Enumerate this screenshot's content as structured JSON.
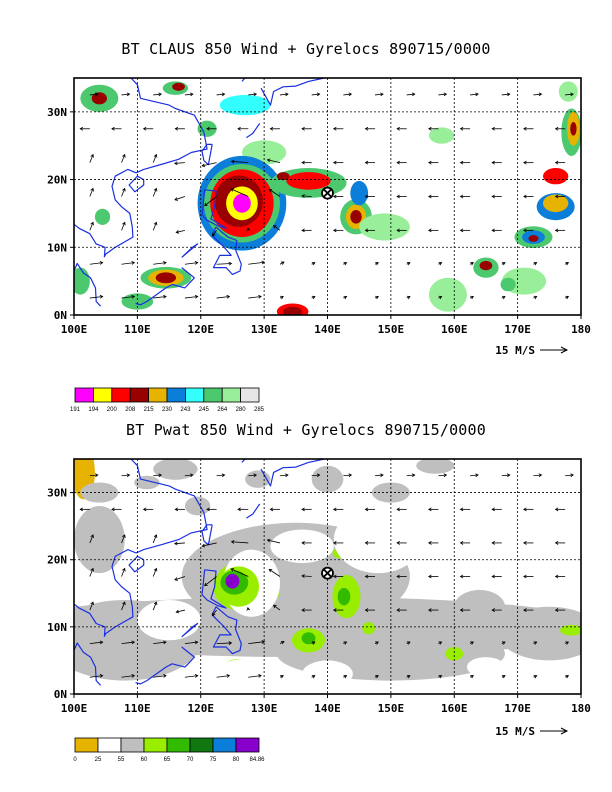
{
  "panels": [
    {
      "id": "top",
      "title": "BT CLAUS 850 Wind + Gyrelocs 890715/0000",
      "y_ticks": [
        "0N",
        "10N",
        "20N",
        "30N"
      ],
      "x_ticks": [
        "100E",
        "110E",
        "120E",
        "130E",
        "140E",
        "150E",
        "160E",
        "170E",
        "180"
      ],
      "ref_vector_label": "15 M/S",
      "colorbar_labels": [
        "191",
        "194",
        "200",
        "208",
        "215",
        "230",
        "243",
        "245",
        "264",
        "280",
        "285"
      ],
      "colorbar_colors": [
        "#ff00ff",
        "#ffff00",
        "#ff0000",
        "#990000",
        "#e6b400",
        "#0a7ed9",
        "#33ffff",
        "#4cc86e",
        "#99ee99",
        "#e6e6e6"
      ],
      "gyre_marker": {
        "lon": 140,
        "lat": 18
      }
    },
    {
      "id": "bottom",
      "title": "BT Pwat 850 Wind + Gyrelocs 890715/0000",
      "y_ticks": [
        "0N",
        "10N",
        "20N",
        "30N"
      ],
      "x_ticks": [
        "100E",
        "110E",
        "120E",
        "130E",
        "140E",
        "150E",
        "160E",
        "170E",
        "180"
      ],
      "ref_vector_label": "15 M/S",
      "colorbar_labels": [
        "0",
        "25",
        "55",
        "60",
        "65",
        "70",
        "75",
        "80",
        "84.86"
      ],
      "colorbar_colors": [
        "#e6b400",
        "#ffffff",
        "#bfbfbf",
        "#99ee00",
        "#33bb00",
        "#117711",
        "#0a7ed9",
        "#8800cc"
      ],
      "gyre_marker": {
        "lon": 140,
        "lat": 18
      }
    }
  ],
  "chart_data": [
    {
      "type": "heatmap",
      "title": "BT CLAUS 850 Wind + Gyrelocs 890715/0000",
      "xlabel": "",
      "ylabel": "",
      "xlim": [
        100,
        180
      ],
      "ylim": [
        0,
        35
      ],
      "x_ticks": [
        "100E",
        "110E",
        "120E",
        "130E",
        "140E",
        "150E",
        "160E",
        "170E",
        "180"
      ],
      "y_ticks": [
        "0N",
        "10N",
        "20N",
        "30N"
      ],
      "grid": true,
      "colorbar_thresholds": [
        191,
        194,
        200,
        208,
        215,
        230,
        243,
        245,
        264,
        280,
        285
      ],
      "overlay": "850 hPa wind vectors, reference vector 15 M/S",
      "gyre_location": {
        "lon": 140,
        "lat": 18
      }
    },
    {
      "type": "heatmap",
      "title": "BT Pwat 850 Wind + Gyrelocs 890715/0000",
      "xlabel": "",
      "ylabel": "",
      "xlim": [
        100,
        180
      ],
      "ylim": [
        0,
        35
      ],
      "x_ticks": [
        "100E",
        "110E",
        "120E",
        "130E",
        "140E",
        "150E",
        "160E",
        "170E",
        "180"
      ],
      "y_ticks": [
        "0N",
        "10N",
        "20N",
        "30N"
      ],
      "grid": true,
      "colorbar_thresholds": [
        0,
        25,
        55,
        60,
        65,
        70,
        75,
        80,
        84.86
      ],
      "overlay": "850 hPa wind vectors, reference vector 15 M/S",
      "gyre_location": {
        "lon": 140,
        "lat": 18
      }
    }
  ]
}
